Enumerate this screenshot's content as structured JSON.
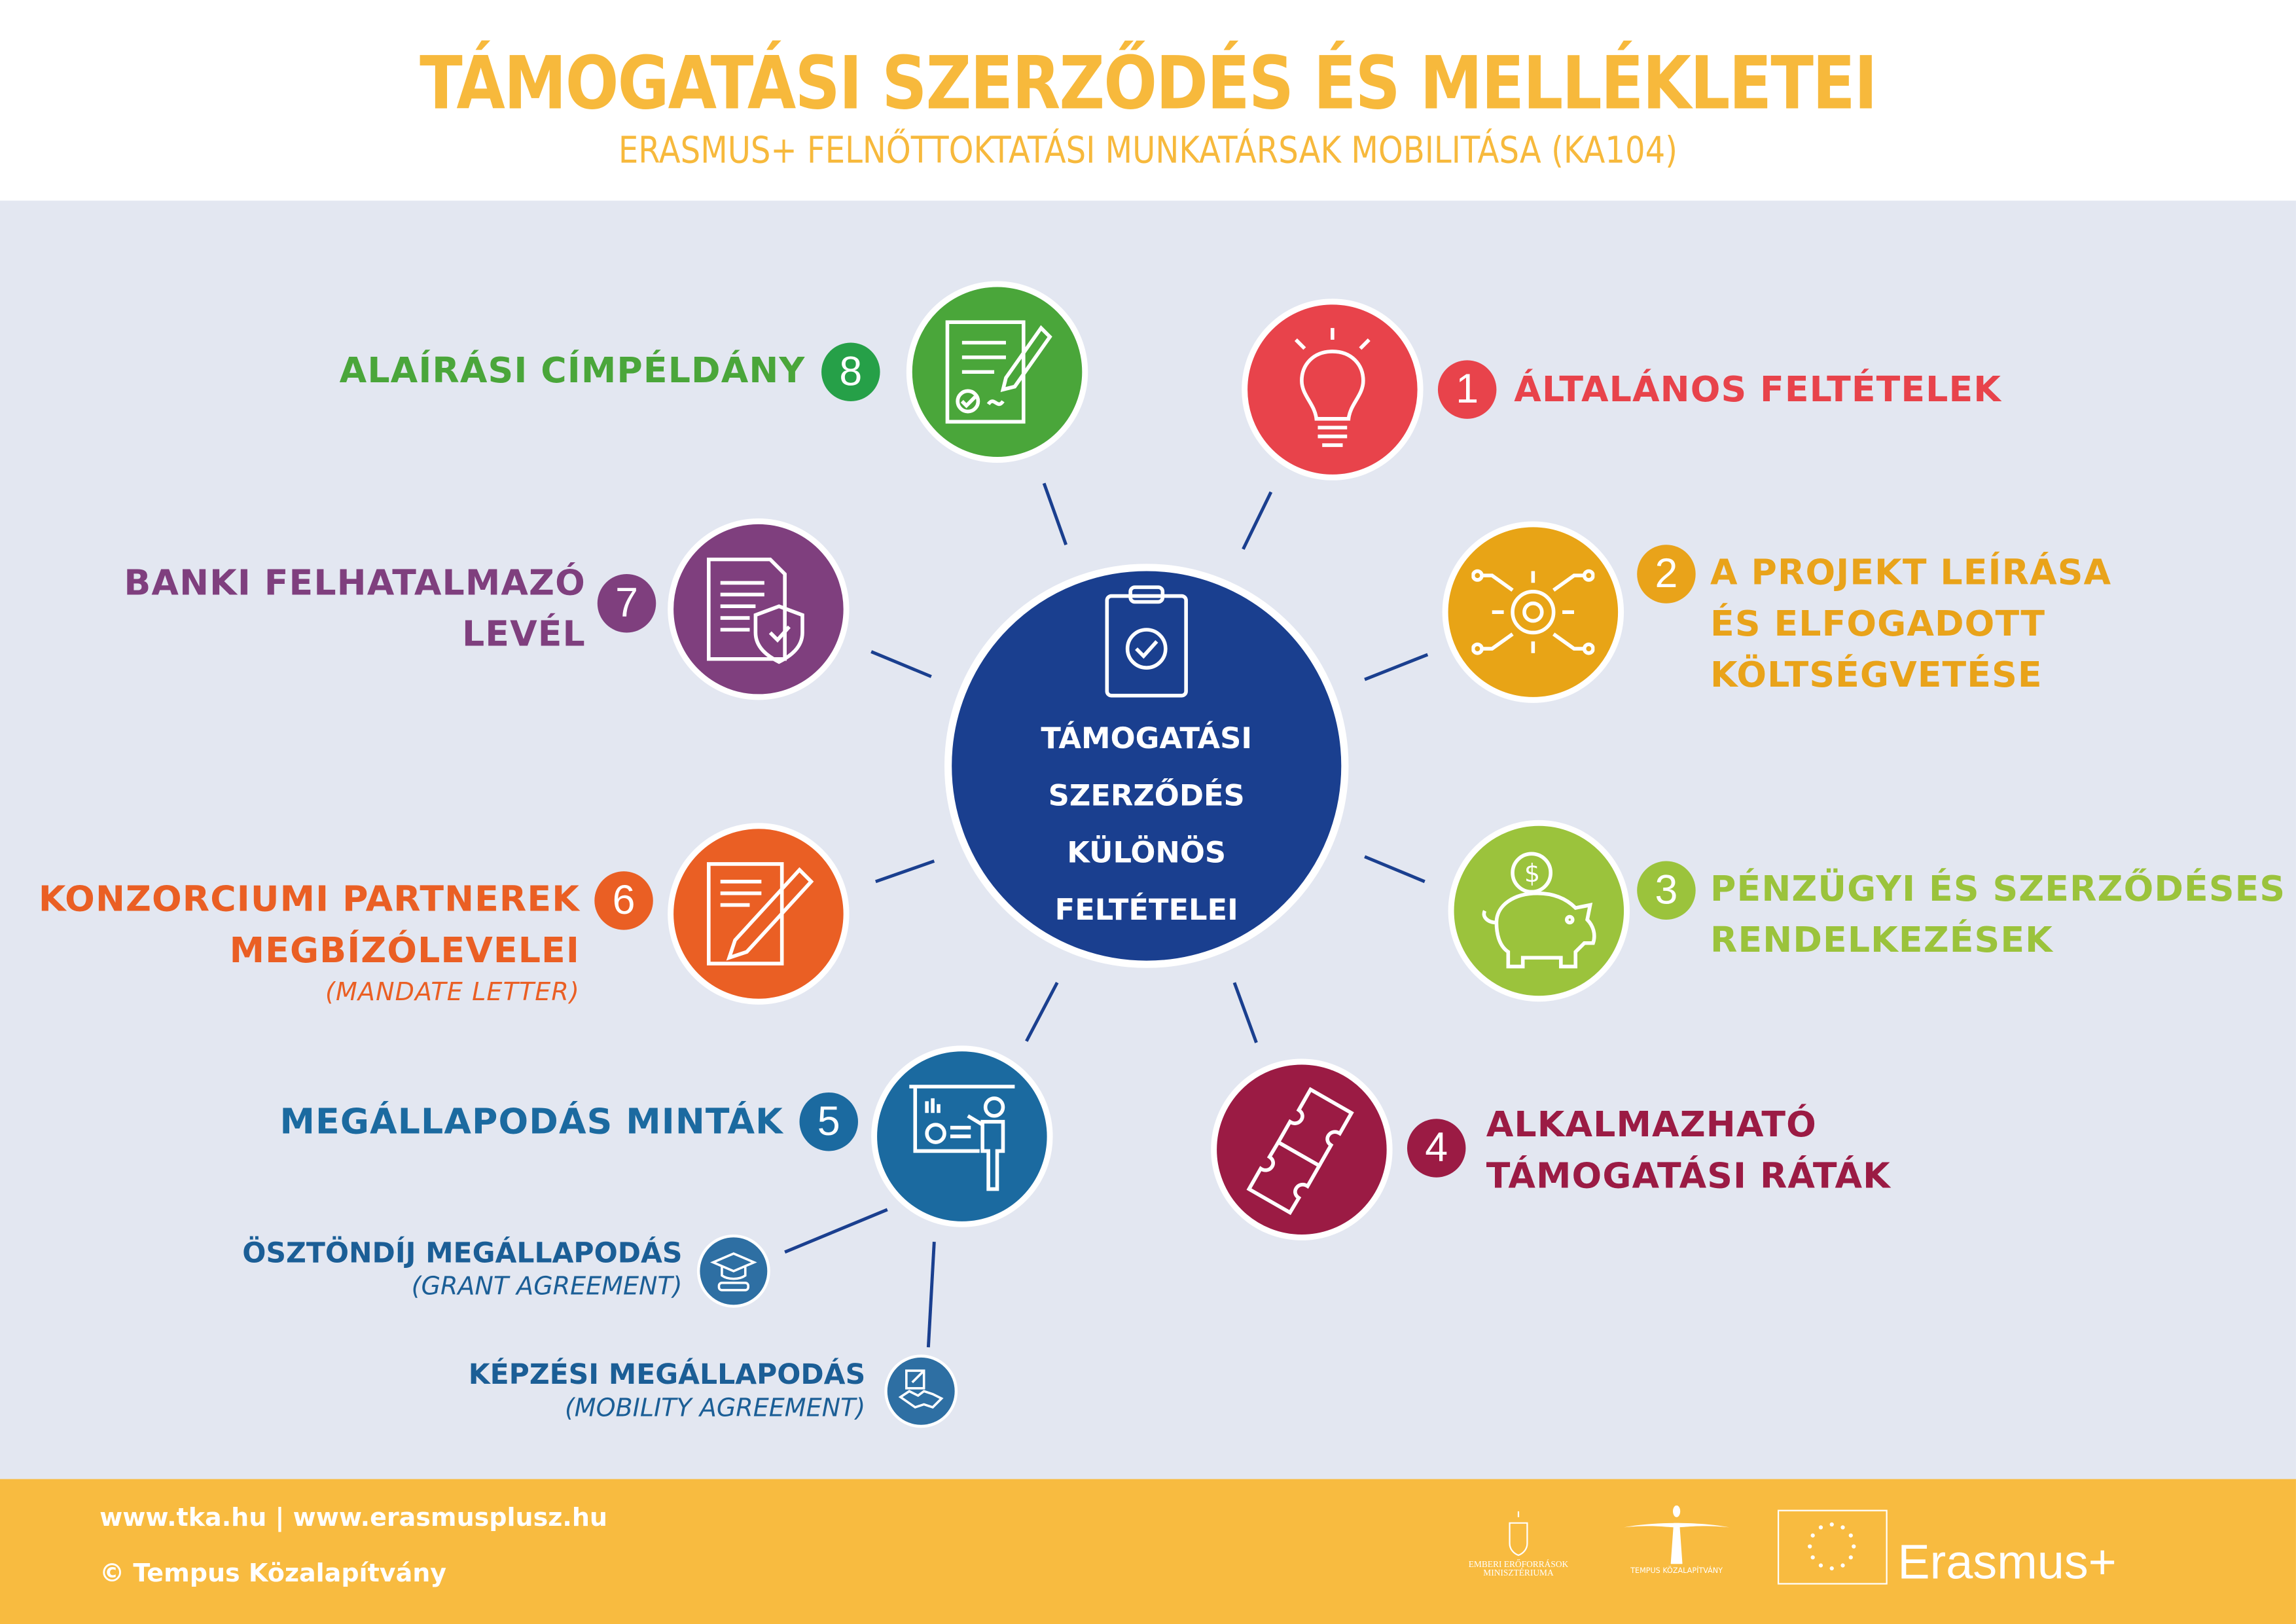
{
  "header": {
    "title": "TÁMOGATÁSI SZERZŐDÉS ÉS MELLÉKLETEI",
    "subtitle": "ERASMUS+ FELNŐTTOKTATÁSI MUNKATÁRSAK MOBILITÁSA (KA104)"
  },
  "center": {
    "lines": [
      "TÁMOGATÁSI",
      "SZERZŐDÉS",
      "KÜLÖNÖS",
      "FELTÉTELEI"
    ],
    "icon": "clipboard-check-icon",
    "color": "#1a3f8f"
  },
  "items": [
    {
      "num": "1",
      "lines": [
        "ÁLTALÁNOS FELTÉTELEK"
      ],
      "color": "#e8434b",
      "icon": "lightbulb-icon"
    },
    {
      "num": "2",
      "lines": [
        "A PROJEKT LEÍRÁSA",
        "ÉS ELFOGADOTT",
        "KÖLTSÉGVETÉSE"
      ],
      "color": "#e9a31a",
      "icon": "gear-circuit-icon"
    },
    {
      "num": "3",
      "lines": [
        "PÉNZÜGYI ÉS SZERZŐDÉSES",
        "RENDELKEZÉSEK"
      ],
      "color": "#9bc33c",
      "icon": "piggy-bank-icon"
    },
    {
      "num": "4",
      "lines": [
        "ALKALMAZHATÓ",
        "TÁMOGATÁSI RÁTÁK"
      ],
      "color": "#9b1b44",
      "icon": "puzzle-icon"
    },
    {
      "num": "5",
      "lines": [
        "MEGÁLLAPODÁS MINTÁK"
      ],
      "color": "#1b6aa0",
      "icon": "presentation-icon"
    },
    {
      "num": "6",
      "lines": [
        "KONZORCIUMI PARTNEREK",
        "MEGBÍZÓLEVELEI"
      ],
      "note": "(MANDATE LETTER)",
      "color": "#ea5f24",
      "icon": "document-pencil-icon"
    },
    {
      "num": "7",
      "lines": [
        "BANKI FELHATALMAZÓ",
        "LEVÉL"
      ],
      "color": "#7f3f7e",
      "icon": "document-shield-icon"
    },
    {
      "num": "8",
      "lines": [
        "ALAÍRÁSI CÍMPÉLDÁNY"
      ],
      "color": "#4aa63a",
      "badge_color": "#26a048",
      "icon": "signed-document-icon"
    }
  ],
  "sub_items": [
    {
      "title": "ÖSZTÖNDÍJ MEGÁLLAPODÁS",
      "note": "(GRANT AGREEMENT)",
      "icon": "graduation-cap-icon"
    },
    {
      "title": "KÉPZÉSI MEGÁLLAPODÁS",
      "note": "(MOBILITY AGREEMENT)",
      "icon": "handshake-icon"
    }
  ],
  "footer": {
    "links": "www.tka.hu | www.erasmusplusz.hu",
    "copyright": "© Tempus Közalapítvány",
    "logos": {
      "ministry": "EMBERI ERŐFORRÁSOK MINISZTÉRIUMA",
      "tempus": "TEMPUS KÖZALAPÍTVÁNY",
      "erasmus": "Erasmus+"
    }
  }
}
